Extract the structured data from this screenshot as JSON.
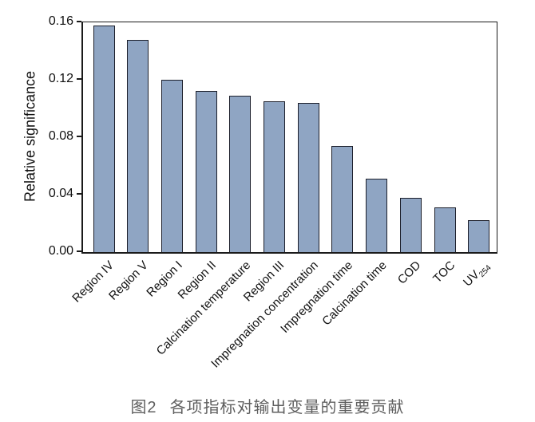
{
  "chart_data": {
    "type": "bar",
    "title": "",
    "ylabel": "Relative significance",
    "xlabel": "",
    "ylim": [
      0,
      0.16
    ],
    "yticks": [
      {
        "value": 0.0,
        "label": "0.00"
      },
      {
        "value": 0.04,
        "label": "0.04"
      },
      {
        "value": 0.08,
        "label": "0.08"
      },
      {
        "value": 0.12,
        "label": "0.12"
      },
      {
        "value": 0.16,
        "label": "0.16"
      }
    ],
    "categories": [
      {
        "label": "Region IV",
        "sub": ""
      },
      {
        "label": "Region V",
        "sub": ""
      },
      {
        "label": "Region I",
        "sub": ""
      },
      {
        "label": "Region II",
        "sub": ""
      },
      {
        "label": "Calcination temperature",
        "sub": ""
      },
      {
        "label": "Region III",
        "sub": ""
      },
      {
        "label": "Impregnation concentration",
        "sub": ""
      },
      {
        "label": "Impregnation time",
        "sub": ""
      },
      {
        "label": "Calcination time",
        "sub": ""
      },
      {
        "label": "COD",
        "sub": ""
      },
      {
        "label": "TOC",
        "sub": ""
      },
      {
        "label": "UV",
        "sub": "254"
      }
    ],
    "values": [
      0.158,
      0.148,
      0.12,
      0.112,
      0.109,
      0.105,
      0.104,
      0.074,
      0.051,
      0.038,
      0.031,
      0.022
    ],
    "legend": null,
    "grid": false,
    "colors": {
      "bar_fill": "#8fa5c3",
      "bar_edge": "#1c1f2b",
      "axis": "#1a1a1a",
      "tick_text": "#111111",
      "caption_text": "#5f5f5f"
    }
  },
  "caption": {
    "fig_label": "图2",
    "title": "各项指标对输出变量的重要贡献"
  }
}
